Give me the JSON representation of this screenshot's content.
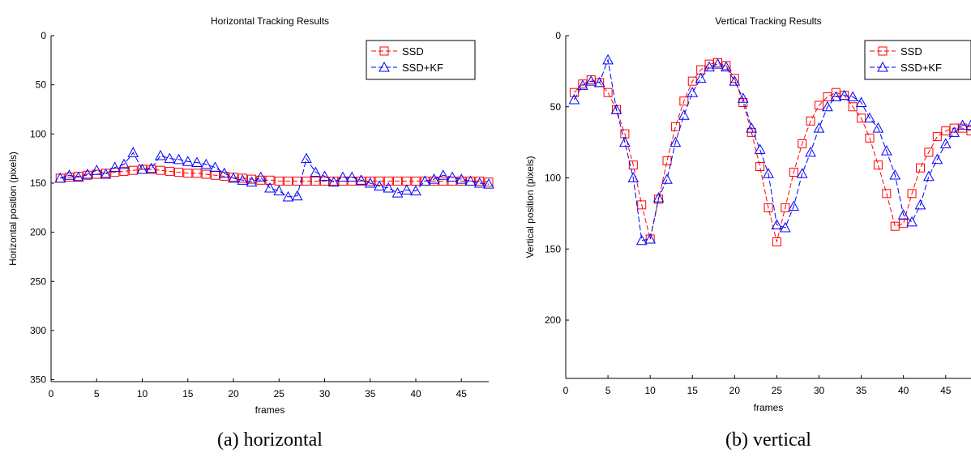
{
  "chart_data": [
    {
      "type": "line",
      "title": "Horizontal Tracking Results",
      "xlabel": "frames",
      "ylabel": "Horizontal position (pixels)",
      "xlim": [
        0,
        48
      ],
      "ylim": [
        0,
        352
      ],
      "y_reversed": true,
      "xticks": [
        0,
        5,
        10,
        15,
        20,
        25,
        30,
        35,
        40,
        45
      ],
      "yticks": [
        0,
        50,
        100,
        150,
        200,
        250,
        300,
        350
      ],
      "grid": false,
      "legend_position": "top-right",
      "caption": "(a) horizontal",
      "x": [
        1,
        2,
        3,
        4,
        5,
        6,
        7,
        8,
        9,
        10,
        11,
        12,
        13,
        14,
        15,
        16,
        17,
        18,
        19,
        20,
        21,
        22,
        23,
        24,
        25,
        26,
        27,
        28,
        29,
        30,
        31,
        32,
        33,
        34,
        35,
        36,
        37,
        38,
        39,
        40,
        41,
        42,
        43,
        44,
        45,
        46,
        47,
        48
      ],
      "series": [
        {
          "name": "SSD",
          "color": "#ff0000",
          "marker": "square",
          "values": [
            145,
            144,
            143,
            142,
            141,
            140,
            139,
            138,
            137,
            136,
            136,
            137,
            138,
            139,
            140,
            140,
            141,
            142,
            143,
            144,
            145,
            146,
            147,
            147,
            148,
            148,
            148,
            148,
            148,
            148,
            148,
            148,
            148,
            148,
            148,
            148,
            148,
            148,
            148,
            148,
            148,
            148,
            148,
            148,
            148,
            148,
            148,
            149
          ]
        },
        {
          "name": "SSD+KF",
          "color": "#0000ff",
          "marker": "triangle",
          "values": [
            145,
            142,
            144,
            141,
            137,
            141,
            134,
            131,
            119,
            136,
            135,
            122,
            125,
            126,
            128,
            129,
            131,
            134,
            140,
            145,
            147,
            149,
            144,
            155,
            158,
            164,
            163,
            125,
            139,
            143,
            149,
            144,
            144,
            147,
            150,
            153,
            155,
            160,
            157,
            158,
            148,
            146,
            142,
            144,
            146,
            148,
            150,
            151
          ]
        }
      ]
    },
    {
      "type": "line",
      "title": "Vertical Tracking Results",
      "xlabel": "frames",
      "ylabel": "Vertical position (pixels)",
      "xlim": [
        0,
        48
      ],
      "ylim": [
        0,
        241
      ],
      "y_reversed": true,
      "xticks": [
        0,
        5,
        10,
        15,
        20,
        25,
        30,
        35,
        40,
        45
      ],
      "yticks": [
        0,
        50,
        100,
        150,
        200
      ],
      "grid": false,
      "legend_position": "top-right",
      "caption": "(b) vertical",
      "x": [
        1,
        2,
        3,
        4,
        5,
        6,
        7,
        8,
        9,
        10,
        11,
        12,
        13,
        14,
        15,
        16,
        17,
        18,
        19,
        20,
        21,
        22,
        23,
        24,
        25,
        26,
        27,
        28,
        29,
        30,
        31,
        32,
        33,
        34,
        35,
        36,
        37,
        38,
        39,
        40,
        41,
        42,
        43,
        44,
        45,
        46,
        47,
        48
      ],
      "series": [
        {
          "name": "SSD",
          "color": "#ff0000",
          "marker": "square",
          "values": [
            40,
            34,
            31,
            33,
            40,
            52,
            69,
            91,
            119,
            143,
            115,
            88,
            64,
            46,
            32,
            24,
            20,
            19,
            21,
            30,
            47,
            68,
            92,
            121,
            145,
            121,
            96,
            76,
            60,
            49,
            43,
            40,
            42,
            50,
            58,
            72,
            91,
            111,
            134,
            132,
            111,
            93,
            82,
            71,
            67,
            65,
            65,
            67
          ]
        },
        {
          "name": "SSD+KF",
          "color": "#0000ff",
          "marker": "triangle",
          "values": [
            45,
            35,
            32,
            33,
            17,
            52,
            75,
            100,
            144,
            143,
            114,
            101,
            75,
            56,
            40,
            30,
            22,
            20,
            22,
            32,
            44,
            65,
            80,
            97,
            133,
            135,
            120,
            97,
            82,
            65,
            50,
            43,
            42,
            43,
            47,
            58,
            65,
            81,
            98,
            126,
            131,
            119,
            99,
            87,
            76,
            68,
            63,
            63
          ]
        }
      ]
    }
  ]
}
